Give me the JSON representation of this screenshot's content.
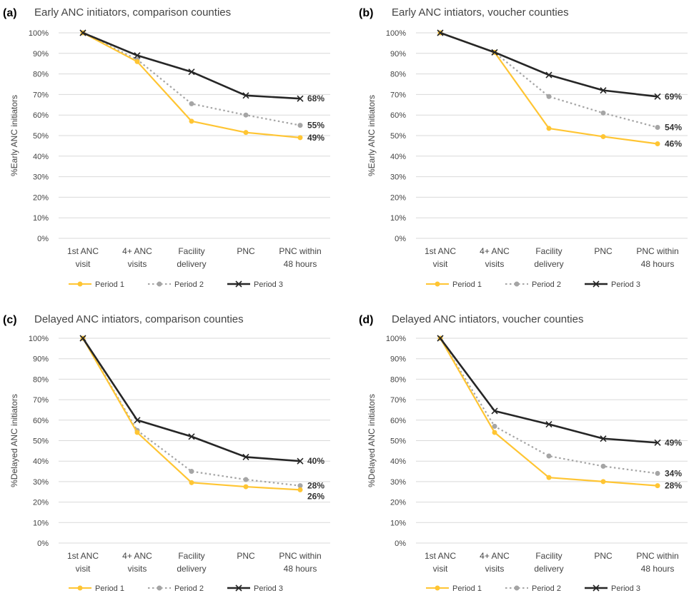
{
  "colors": {
    "period1": "#FFC533",
    "period2": "#A5A5A5",
    "period3": "#262626",
    "grid": "#D9D9D9"
  },
  "chart_data": [
    {
      "type": "line",
      "panel": "(a)",
      "title": "Early ANC initiators, comparison counties",
      "ylabel": "%Early ANC initiators",
      "ylim": [
        0,
        100
      ],
      "yticks": [
        "0%",
        "10%",
        "20%",
        "30%",
        "40%",
        "50%",
        "60%",
        "70%",
        "80%",
        "90%",
        "100%"
      ],
      "categories": [
        [
          "1st ANC",
          "visit"
        ],
        [
          "4+ ANC",
          "visits"
        ],
        [
          "Facility",
          "delivery"
        ],
        [
          "PNC"
        ],
        [
          "PNC within",
          "48 hours"
        ]
      ],
      "series": [
        {
          "name": "Period 1",
          "values": [
            100,
            86,
            57,
            51.5,
            49
          ],
          "end_label": "49%"
        },
        {
          "name": "Period 2",
          "values": [
            100,
            87,
            65.5,
            60,
            55
          ],
          "end_label": "55%"
        },
        {
          "name": "Period 3",
          "values": [
            100,
            89,
            81,
            69.5,
            68
          ],
          "end_label": "68%"
        }
      ],
      "legend": "bottom",
      "grid": true
    },
    {
      "type": "line",
      "panel": "(b)",
      "title": "Early ANC intiators, voucher counties",
      "ylabel": "%Early ANC initiators",
      "ylim": [
        0,
        100
      ],
      "yticks": [
        "0%",
        "10%",
        "20%",
        "30%",
        "40%",
        "50%",
        "60%",
        "70%",
        "80%",
        "90%",
        "100%"
      ],
      "categories": [
        [
          "1st ANC",
          "visit"
        ],
        [
          "4+ ANC",
          "visits"
        ],
        [
          "Facility",
          "delivery"
        ],
        [
          "PNC"
        ],
        [
          "PNC within",
          "48 hours"
        ]
      ],
      "series": [
        {
          "name": "Period 1",
          "values": [
            100,
            90.5,
            53.5,
            49.5,
            46
          ],
          "end_label": "46%"
        },
        {
          "name": "Period 2",
          "values": [
            100,
            90.5,
            69,
            61,
            54
          ],
          "end_label": "54%"
        },
        {
          "name": "Period 3",
          "values": [
            100,
            90.5,
            79.5,
            72,
            69
          ],
          "end_label": "69%"
        }
      ],
      "legend": "bottom",
      "grid": true
    },
    {
      "type": "line",
      "panel": "(c)",
      "title": "Delayed ANC intiators, comparison counties",
      "ylabel": "%Delayed ANC initiators",
      "ylim": [
        0,
        100
      ],
      "yticks": [
        "0%",
        "10%",
        "20%",
        "30%",
        "40%",
        "50%",
        "60%",
        "70%",
        "80%",
        "90%",
        "100%"
      ],
      "categories": [
        [
          "1st ANC",
          "visit"
        ],
        [
          "4+ ANC",
          "visits"
        ],
        [
          "Facility",
          "delivery"
        ],
        [
          "PNC"
        ],
        [
          "PNC within",
          "48 hours"
        ]
      ],
      "series": [
        {
          "name": "Period 1",
          "values": [
            100,
            54,
            29.5,
            27.5,
            26
          ],
          "end_label": "26%"
        },
        {
          "name": "Period 2",
          "values": [
            100,
            55,
            35,
            31,
            28
          ],
          "end_label": "28%"
        },
        {
          "name": "Period 3",
          "values": [
            100,
            60,
            52,
            42,
            40
          ],
          "end_label": "40%"
        }
      ],
      "legend": "bottom",
      "grid": true
    },
    {
      "type": "line",
      "panel": "(d)",
      "title": "Delayed ANC intiators, voucher counties",
      "ylabel": "%Delayed ANC initiators",
      "ylim": [
        0,
        100
      ],
      "yticks": [
        "0%",
        "10%",
        "20%",
        "30%",
        "40%",
        "50%",
        "60%",
        "70%",
        "80%",
        "90%",
        "100%"
      ],
      "categories": [
        [
          "1st ANC",
          "visit"
        ],
        [
          "4+ ANC",
          "visits"
        ],
        [
          "Facility",
          "delivery"
        ],
        [
          "PNC"
        ],
        [
          "PNC within",
          "48 hours"
        ]
      ],
      "series": [
        {
          "name": "Period 1",
          "values": [
            100,
            54,
            32,
            30,
            28
          ],
          "end_label": "28%"
        },
        {
          "name": "Period 2",
          "values": [
            100,
            57,
            42.5,
            37.5,
            34
          ],
          "end_label": "34%"
        },
        {
          "name": "Period 3",
          "values": [
            100,
            64.5,
            58,
            51,
            49
          ],
          "end_label": "49%"
        }
      ],
      "legend": "bottom",
      "grid": true
    }
  ]
}
